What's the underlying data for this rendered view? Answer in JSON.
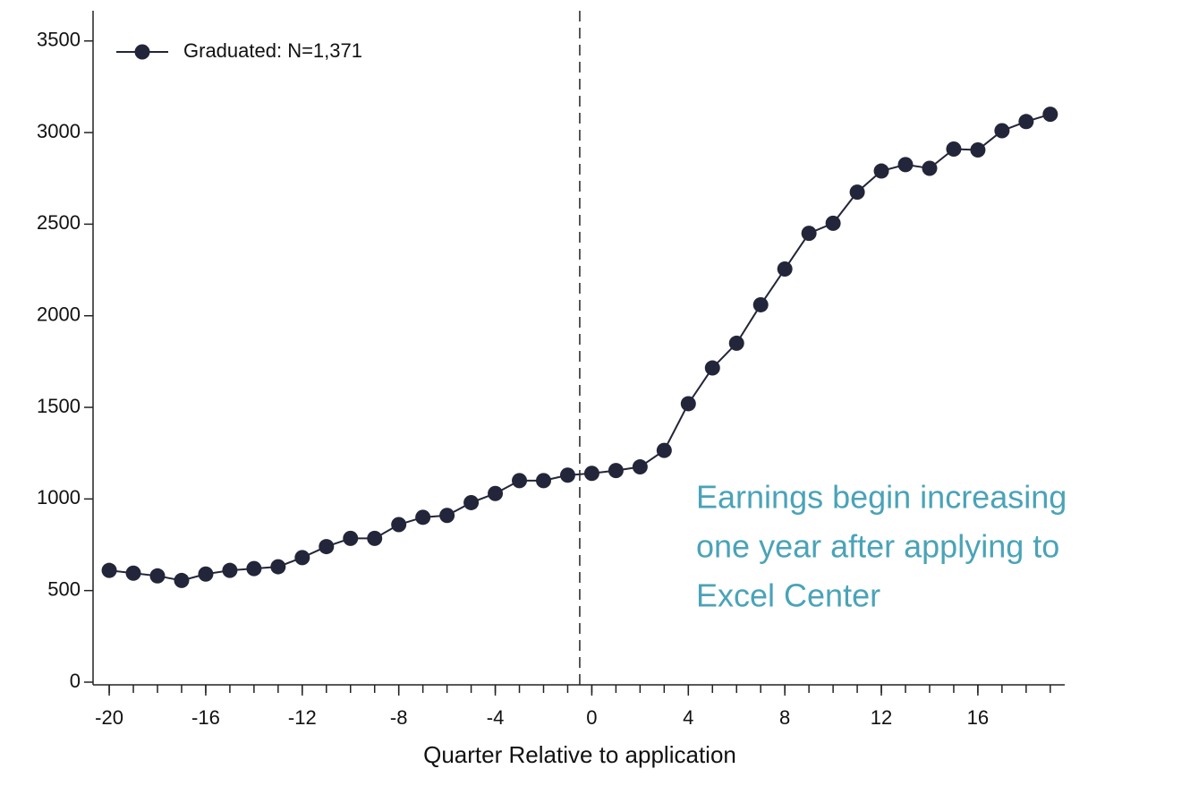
{
  "chart_data": {
    "type": "line",
    "x": [
      -20,
      -19,
      -18,
      -17,
      -16,
      -15,
      -14,
      -13,
      -12,
      -11,
      -10,
      -9,
      -8,
      -7,
      -6,
      -5,
      -4,
      -3,
      -2,
      -1,
      0,
      1,
      2,
      3,
      4,
      5,
      6,
      7,
      8,
      9,
      10,
      11,
      12,
      13,
      14,
      15,
      16,
      17,
      18,
      19
    ],
    "series": [
      {
        "name": "Graduated: N=1,371",
        "color": "#23263a",
        "values": [
          610,
          595,
          580,
          555,
          590,
          610,
          620,
          630,
          680,
          740,
          785,
          785,
          860,
          900,
          910,
          980,
          1030,
          1100,
          1100,
          1130,
          1140,
          1155,
          1175,
          1265,
          1520,
          1715,
          1850,
          2060,
          2255,
          2450,
          2505,
          2675,
          2790,
          2825,
          2805,
          2910,
          2905,
          3010,
          3060,
          3100
        ]
      }
    ],
    "xlabel": "Quarter Relative to application",
    "xlim": [
      -20.67,
      19.6
    ],
    "xticks": [
      -20,
      -16,
      -12,
      -8,
      -4,
      0,
      4,
      8,
      12,
      16
    ],
    "ylim": [
      0,
      3665
    ],
    "yticks": [
      0,
      500,
      1000,
      1500,
      2000,
      2500,
      3000,
      3500
    ],
    "vline": -0.5,
    "legend": "upper left",
    "annotation": {
      "lines": [
        "Earnings begin increasing",
        "one year after applying to",
        "Excel Center"
      ],
      "color": "#4aa3b8"
    }
  }
}
